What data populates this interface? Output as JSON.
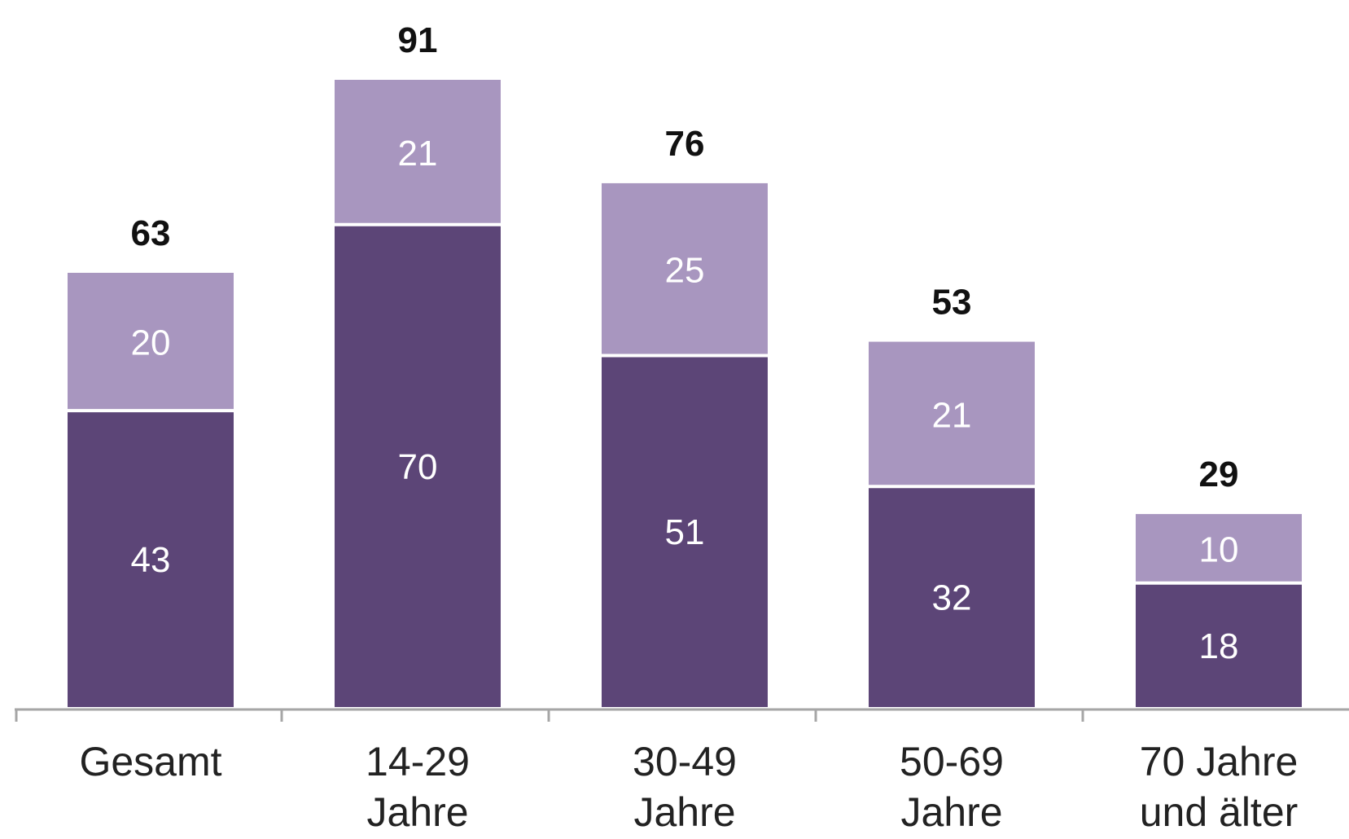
{
  "chart_data": {
    "type": "bar",
    "stacked": true,
    "categories": [
      [
        "Gesamt"
      ],
      [
        "14-29",
        "Jahre"
      ],
      [
        "30-49",
        "Jahre"
      ],
      [
        "50-69",
        "Jahre"
      ],
      [
        "70 Jahre",
        "und älter"
      ]
    ],
    "series": [
      {
        "values": [
          43,
          70,
          51,
          32,
          18
        ],
        "color": "#5c4577"
      },
      {
        "values": [
          20,
          21,
          25,
          21,
          10
        ],
        "color": "#a896bf"
      }
    ],
    "totals": [
      63,
      91,
      76,
      53,
      29
    ],
    "ylim": [
      0,
      91
    ],
    "grid": false,
    "legend": "none",
    "axis_color": "#a6a6a6"
  }
}
